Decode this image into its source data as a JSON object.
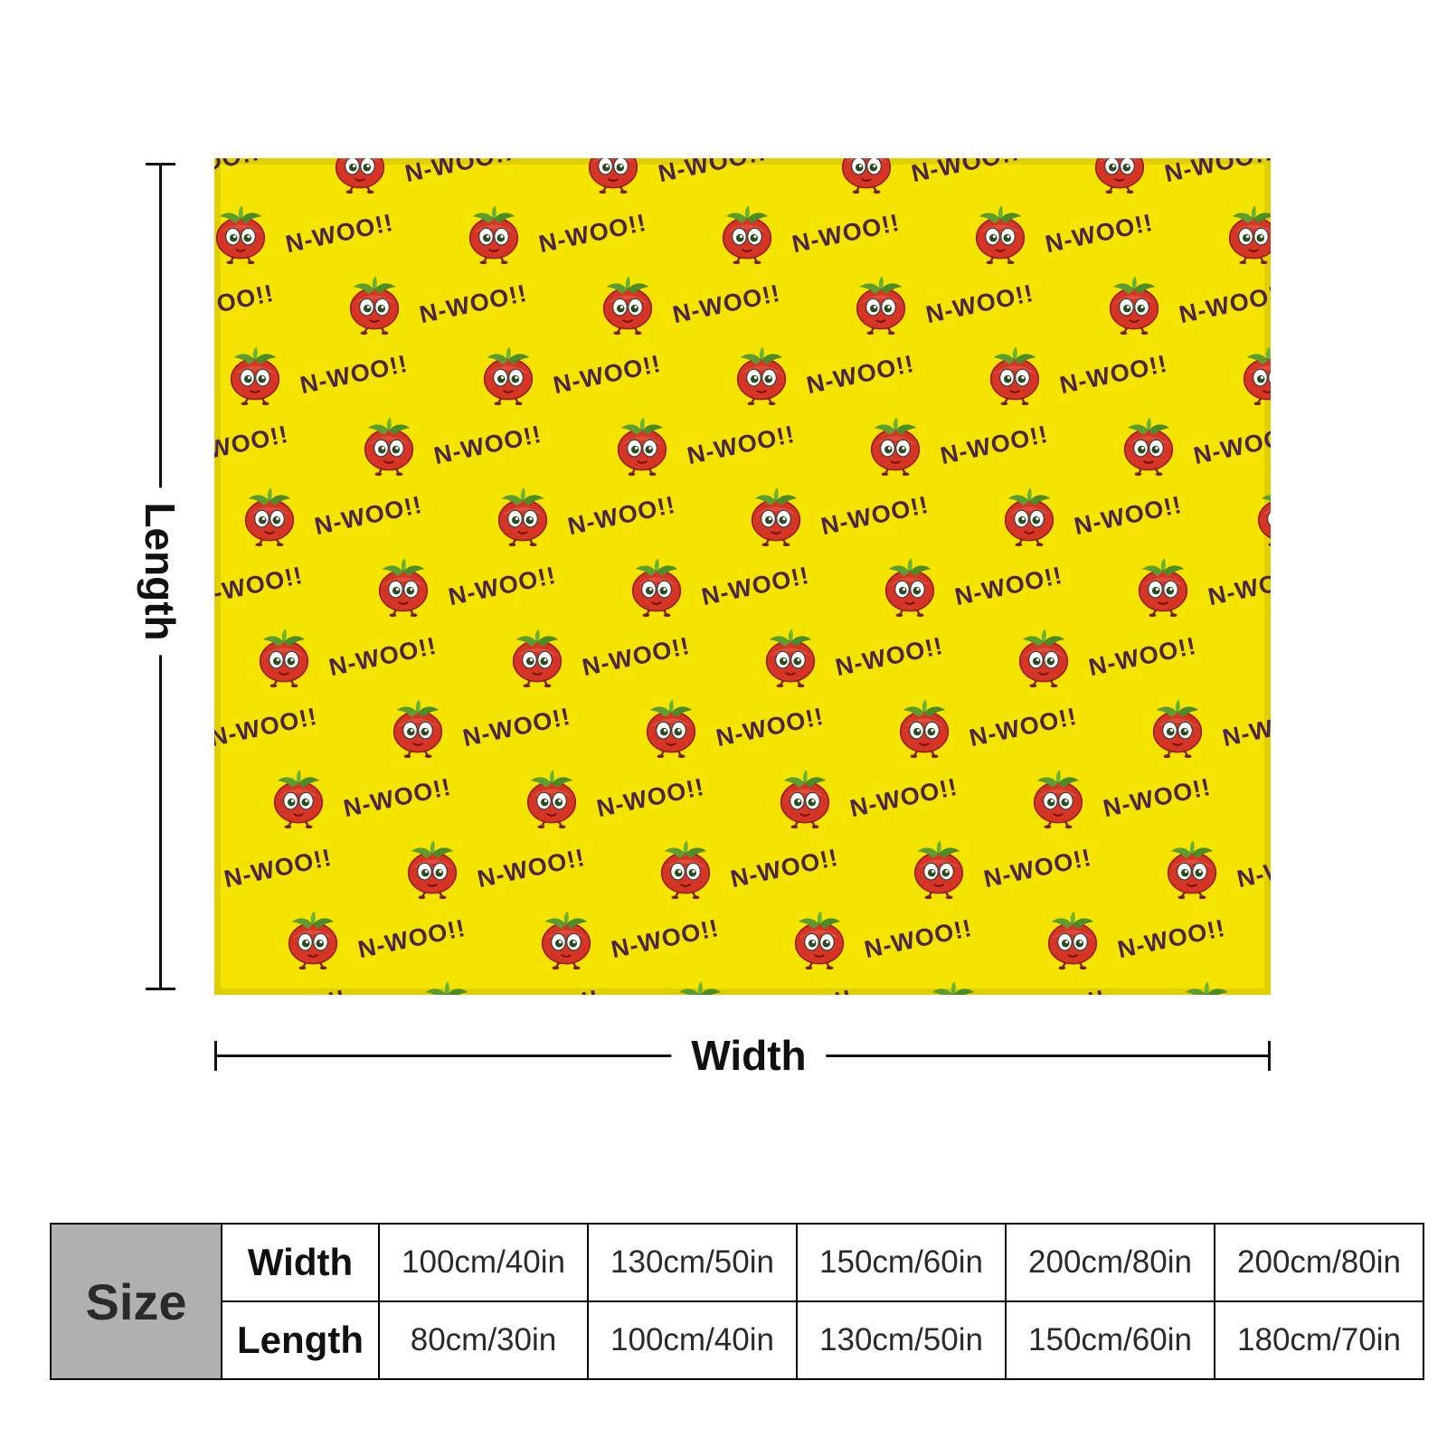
{
  "product": {
    "name": "tomato-pattern-blanket",
    "pattern_text": "N-WOO!!",
    "colors": {
      "blanket_background": "#f5e400",
      "pattern_text": "#4a2545",
      "tomato_red": "#d63425",
      "leaf_green": "#5a9e2f"
    }
  },
  "dimensions": {
    "length_label": "Length",
    "width_label": "Width"
  },
  "size_table": {
    "title": "Size",
    "rows": [
      {
        "label": "Width",
        "values": [
          "100cm/40in",
          "130cm/50in",
          "150cm/60in",
          "200cm/80in",
          "200cm/80in"
        ]
      },
      {
        "label": "Length",
        "values": [
          "80cm/30in",
          "100cm/40in",
          "130cm/50in",
          "150cm/60in",
          "180cm/70in"
        ]
      }
    ]
  }
}
